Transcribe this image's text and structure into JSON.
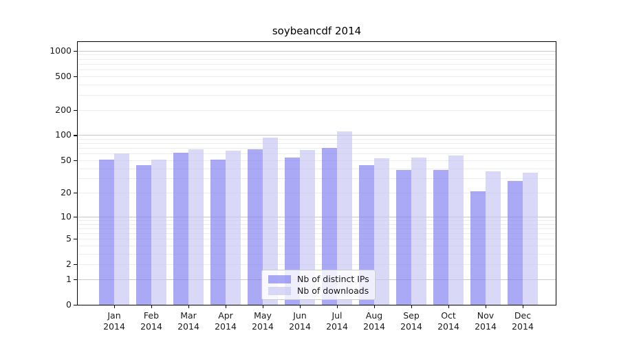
{
  "chart_data": {
    "type": "bar",
    "title": "soybeancdf 2014",
    "categories": [
      "Jan 2014",
      "Feb 2014",
      "Mar 2014",
      "Apr 2014",
      "May 2014",
      "Jun 2014",
      "Jul 2014",
      "Aug 2014",
      "Sep 2014",
      "Oct 2014",
      "Nov 2014",
      "Dec 2014"
    ],
    "series": [
      {
        "name": "Nb of distinct IPs",
        "color": "#7b7bf0",
        "alpha": 0.65,
        "values": [
          51,
          44,
          62,
          51,
          67,
          54,
          70,
          44,
          38,
          38,
          21,
          28
        ]
      },
      {
        "name": "Nb of downloads",
        "color": "#c5c5f3",
        "alpha": 0.65,
        "values": [
          60,
          51,
          68,
          65,
          93,
          66,
          110,
          53,
          54,
          57,
          37,
          35
        ]
      }
    ],
    "yscale": "log1p",
    "yticks": [
      0,
      1,
      2,
      5,
      10,
      20,
      50,
      100,
      200,
      500,
      1000
    ],
    "ylim": [
      0,
      1270
    ],
    "xlabel": "",
    "ylabel": "",
    "grid": true,
    "legend_position": "inside-lower-center",
    "colors": {
      "grid_minor": "#ededed",
      "grid_major": "#c9c9c9",
      "axis": "#000000",
      "text": "#1a1a1a",
      "legend_border": "#cccccc"
    }
  }
}
